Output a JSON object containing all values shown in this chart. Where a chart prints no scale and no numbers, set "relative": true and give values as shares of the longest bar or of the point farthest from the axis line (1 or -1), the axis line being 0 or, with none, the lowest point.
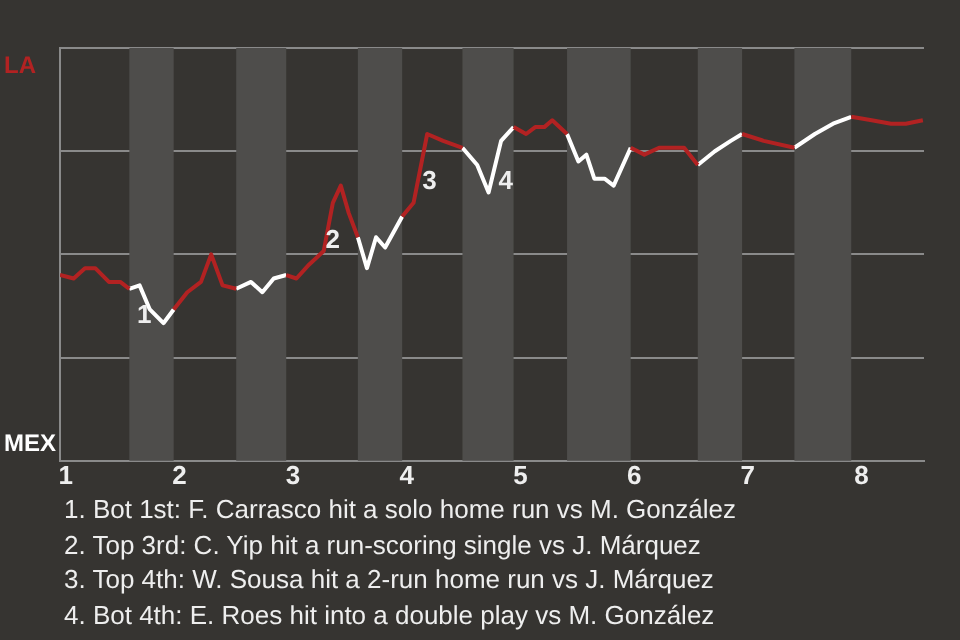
{
  "chart_data": {
    "type": "line",
    "relative": true,
    "x": [
      0.95,
      1.07,
      1.17,
      1.26,
      1.38,
      1.48,
      1.56,
      1.65,
      1.74,
      1.86,
      1.95,
      2.07,
      2.19,
      2.28,
      2.38,
      2.5,
      2.63,
      2.73,
      2.83,
      2.94,
      3.03,
      3.14,
      3.27,
      3.35,
      3.42,
      3.49,
      3.57,
      3.65,
      3.73,
      3.81,
      3.96,
      4.06,
      4.18,
      4.32,
      4.49,
      4.62,
      4.72,
      4.83,
      4.94,
      5.05,
      5.13,
      5.21,
      5.28,
      5.41,
      5.51,
      5.58,
      5.65,
      5.74,
      5.82,
      5.97,
      6.09,
      6.22,
      6.44,
      6.56,
      6.71,
      6.85,
      6.95,
      7.14,
      7.41,
      7.59,
      7.75,
      7.91,
      8.09,
      8.26,
      8.39,
      8.54
    ],
    "series": [
      {
        "color": "#b22222",
        "values": [
          0.54,
          0.53,
          0.56,
          0.56,
          0.52,
          0.52,
          0.5,
          null,
          null,
          null,
          0.44,
          0.49,
          0.52,
          0.6,
          0.51,
          0.5,
          null,
          null,
          null,
          0.54,
          0.53,
          0.57,
          0.61,
          0.75,
          0.8,
          0.72,
          0.65,
          null,
          null,
          null,
          0.71,
          0.75,
          0.95,
          0.93,
          0.91,
          null,
          null,
          null,
          0.97,
          0.95,
          0.97,
          0.97,
          0.99,
          0.95,
          null,
          null,
          null,
          null,
          null,
          0.91,
          0.89,
          0.91,
          0.91,
          0.86,
          null,
          null,
          0.95,
          0.93,
          0.91,
          null,
          null,
          1,
          0.99,
          0.98,
          0.98,
          0.99
        ]
      },
      {
        "color": "#ffffff",
        "values": [
          null,
          null,
          null,
          null,
          null,
          null,
          0.5,
          0.51,
          0.44,
          0.4,
          0.44,
          null,
          null,
          null,
          null,
          0.5,
          0.52,
          0.49,
          0.53,
          0.54,
          null,
          null,
          null,
          null,
          null,
          null,
          0.65,
          0.56,
          0.65,
          0.62,
          0.71,
          null,
          null,
          null,
          0.91,
          0.86,
          0.78,
          0.93,
          0.97,
          null,
          null,
          null,
          null,
          0.95,
          0.87,
          0.89,
          0.82,
          0.82,
          0.8,
          0.91,
          null,
          null,
          null,
          0.86,
          0.9,
          0.93,
          0.95,
          null,
          0.91,
          0.95,
          0.98,
          1,
          null,
          null,
          null,
          null
        ]
      }
    ],
    "xlim": [
      0.95,
      8.55
    ],
    "xticks": [
      1,
      2,
      3,
      4,
      5,
      6,
      7,
      8
    ],
    "grid": "y",
    "marker": "none",
    "bands": [
      {
        "axis": "x",
        "from": 1.56,
        "to": 1.95,
        "color": "#4e4d4b"
      },
      {
        "axis": "x",
        "from": 2.5,
        "to": 2.94,
        "color": "#4e4d4b"
      },
      {
        "axis": "x",
        "from": 3.57,
        "to": 3.96,
        "color": "#4e4d4b"
      },
      {
        "axis": "x",
        "from": 4.49,
        "to": 4.94,
        "color": "#4e4d4b"
      },
      {
        "axis": "x",
        "from": 5.41,
        "to": 5.97,
        "color": "#4e4d4b"
      },
      {
        "axis": "x",
        "from": 6.56,
        "to": 6.95,
        "color": "#4e4d4b"
      },
      {
        "axis": "x",
        "from": 7.41,
        "to": 7.91,
        "color": "#4e4d4b"
      }
    ],
    "annotations": [
      "LA",
      "MEX",
      {
        "text": "1",
        "x": 1.69,
        "y": 0.42
      },
      {
        "text": "2",
        "x": 3.35,
        "y": 0.64
      },
      {
        "text": "3",
        "x": 4.2,
        "y": 0.81
      },
      {
        "text": "4",
        "x": 4.87,
        "y": 0.81
      },
      "1. Bot 1st: F. Carrasco hit a solo home run vs M. González",
      "2. Top 3rd: C. Yip hit a run-scoring single vs J. Márquez",
      "3. Top 4th: W. Sousa hit a 2-run home run vs J. Márquez",
      "4. Bot 4th: E. Roes hit into a double play vs M. González"
    ]
  }
}
